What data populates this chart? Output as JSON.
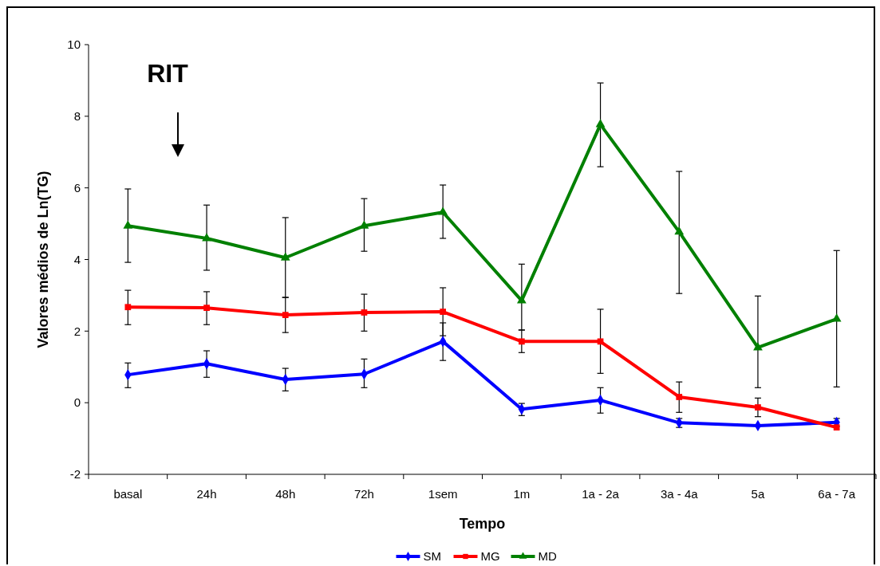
{
  "chart_data": {
    "type": "line",
    "xlabel": "Tempo",
    "ylabel": "Valores médios de Ln(TG)",
    "annotations": [
      "RIT"
    ],
    "categories": [
      "basal",
      "24h",
      "48h",
      "72h",
      "1sem",
      "1m",
      "1a - 2a",
      "3a - 4a",
      "5a",
      "6a - 7a"
    ],
    "ylim": [
      -2,
      10
    ],
    "yticks": [
      -2,
      0,
      2,
      4,
      6,
      8,
      10
    ],
    "grid": false,
    "legend": "bottom",
    "line_style": "solid",
    "series": [
      {
        "name": "SM",
        "color": "#0000ff",
        "marker": "diamond",
        "values": [
          0.78,
          1.09,
          0.65,
          0.8,
          1.71,
          -0.18,
          0.07,
          -0.56,
          -0.64,
          -0.55
        ],
        "errors": [
          [
            0.42,
            1.11
          ],
          [
            0.71,
            1.45
          ],
          [
            0.33,
            0.96
          ],
          [
            0.42,
            1.22
          ],
          [
            1.18,
            2.23
          ],
          [
            -0.36,
            -0.02
          ],
          [
            -0.29,
            0.42
          ],
          [
            -0.69,
            -0.44
          ],
          null,
          [
            -0.66,
            -0.44
          ]
        ]
      },
      {
        "name": "MG",
        "color": "#ff0000",
        "marker": "square",
        "values": [
          2.67,
          2.65,
          2.45,
          2.52,
          2.54,
          1.71,
          1.71,
          0.16,
          -0.13,
          -0.69
        ],
        "errors": [
          [
            2.18,
            3.14
          ],
          [
            2.18,
            3.1
          ],
          [
            1.96,
            2.94
          ],
          [
            2.0,
            3.03
          ],
          [
            1.87,
            3.21
          ],
          [
            1.4,
            2.03
          ],
          [
            0.82,
            2.61
          ],
          [
            -0.27,
            0.58
          ],
          [
            -0.39,
            0.13
          ],
          null
        ]
      },
      {
        "name": "MD",
        "color": "#008000",
        "marker": "triangle",
        "values": [
          4.94,
          4.59,
          4.05,
          4.94,
          5.32,
          2.85,
          7.77,
          4.77,
          1.54,
          2.34
        ],
        "errors": [
          [
            3.92,
            5.97
          ],
          [
            3.7,
            5.52
          ],
          [
            2.94,
            5.17
          ],
          [
            4.23,
            5.7
          ],
          [
            4.59,
            6.08
          ],
          [
            2.03,
            3.87
          ],
          [
            6.59,
            8.93
          ],
          [
            3.05,
            6.46
          ],
          [
            0.42,
            2.98
          ],
          [
            0.44,
            4.25
          ]
        ]
      }
    ]
  }
}
